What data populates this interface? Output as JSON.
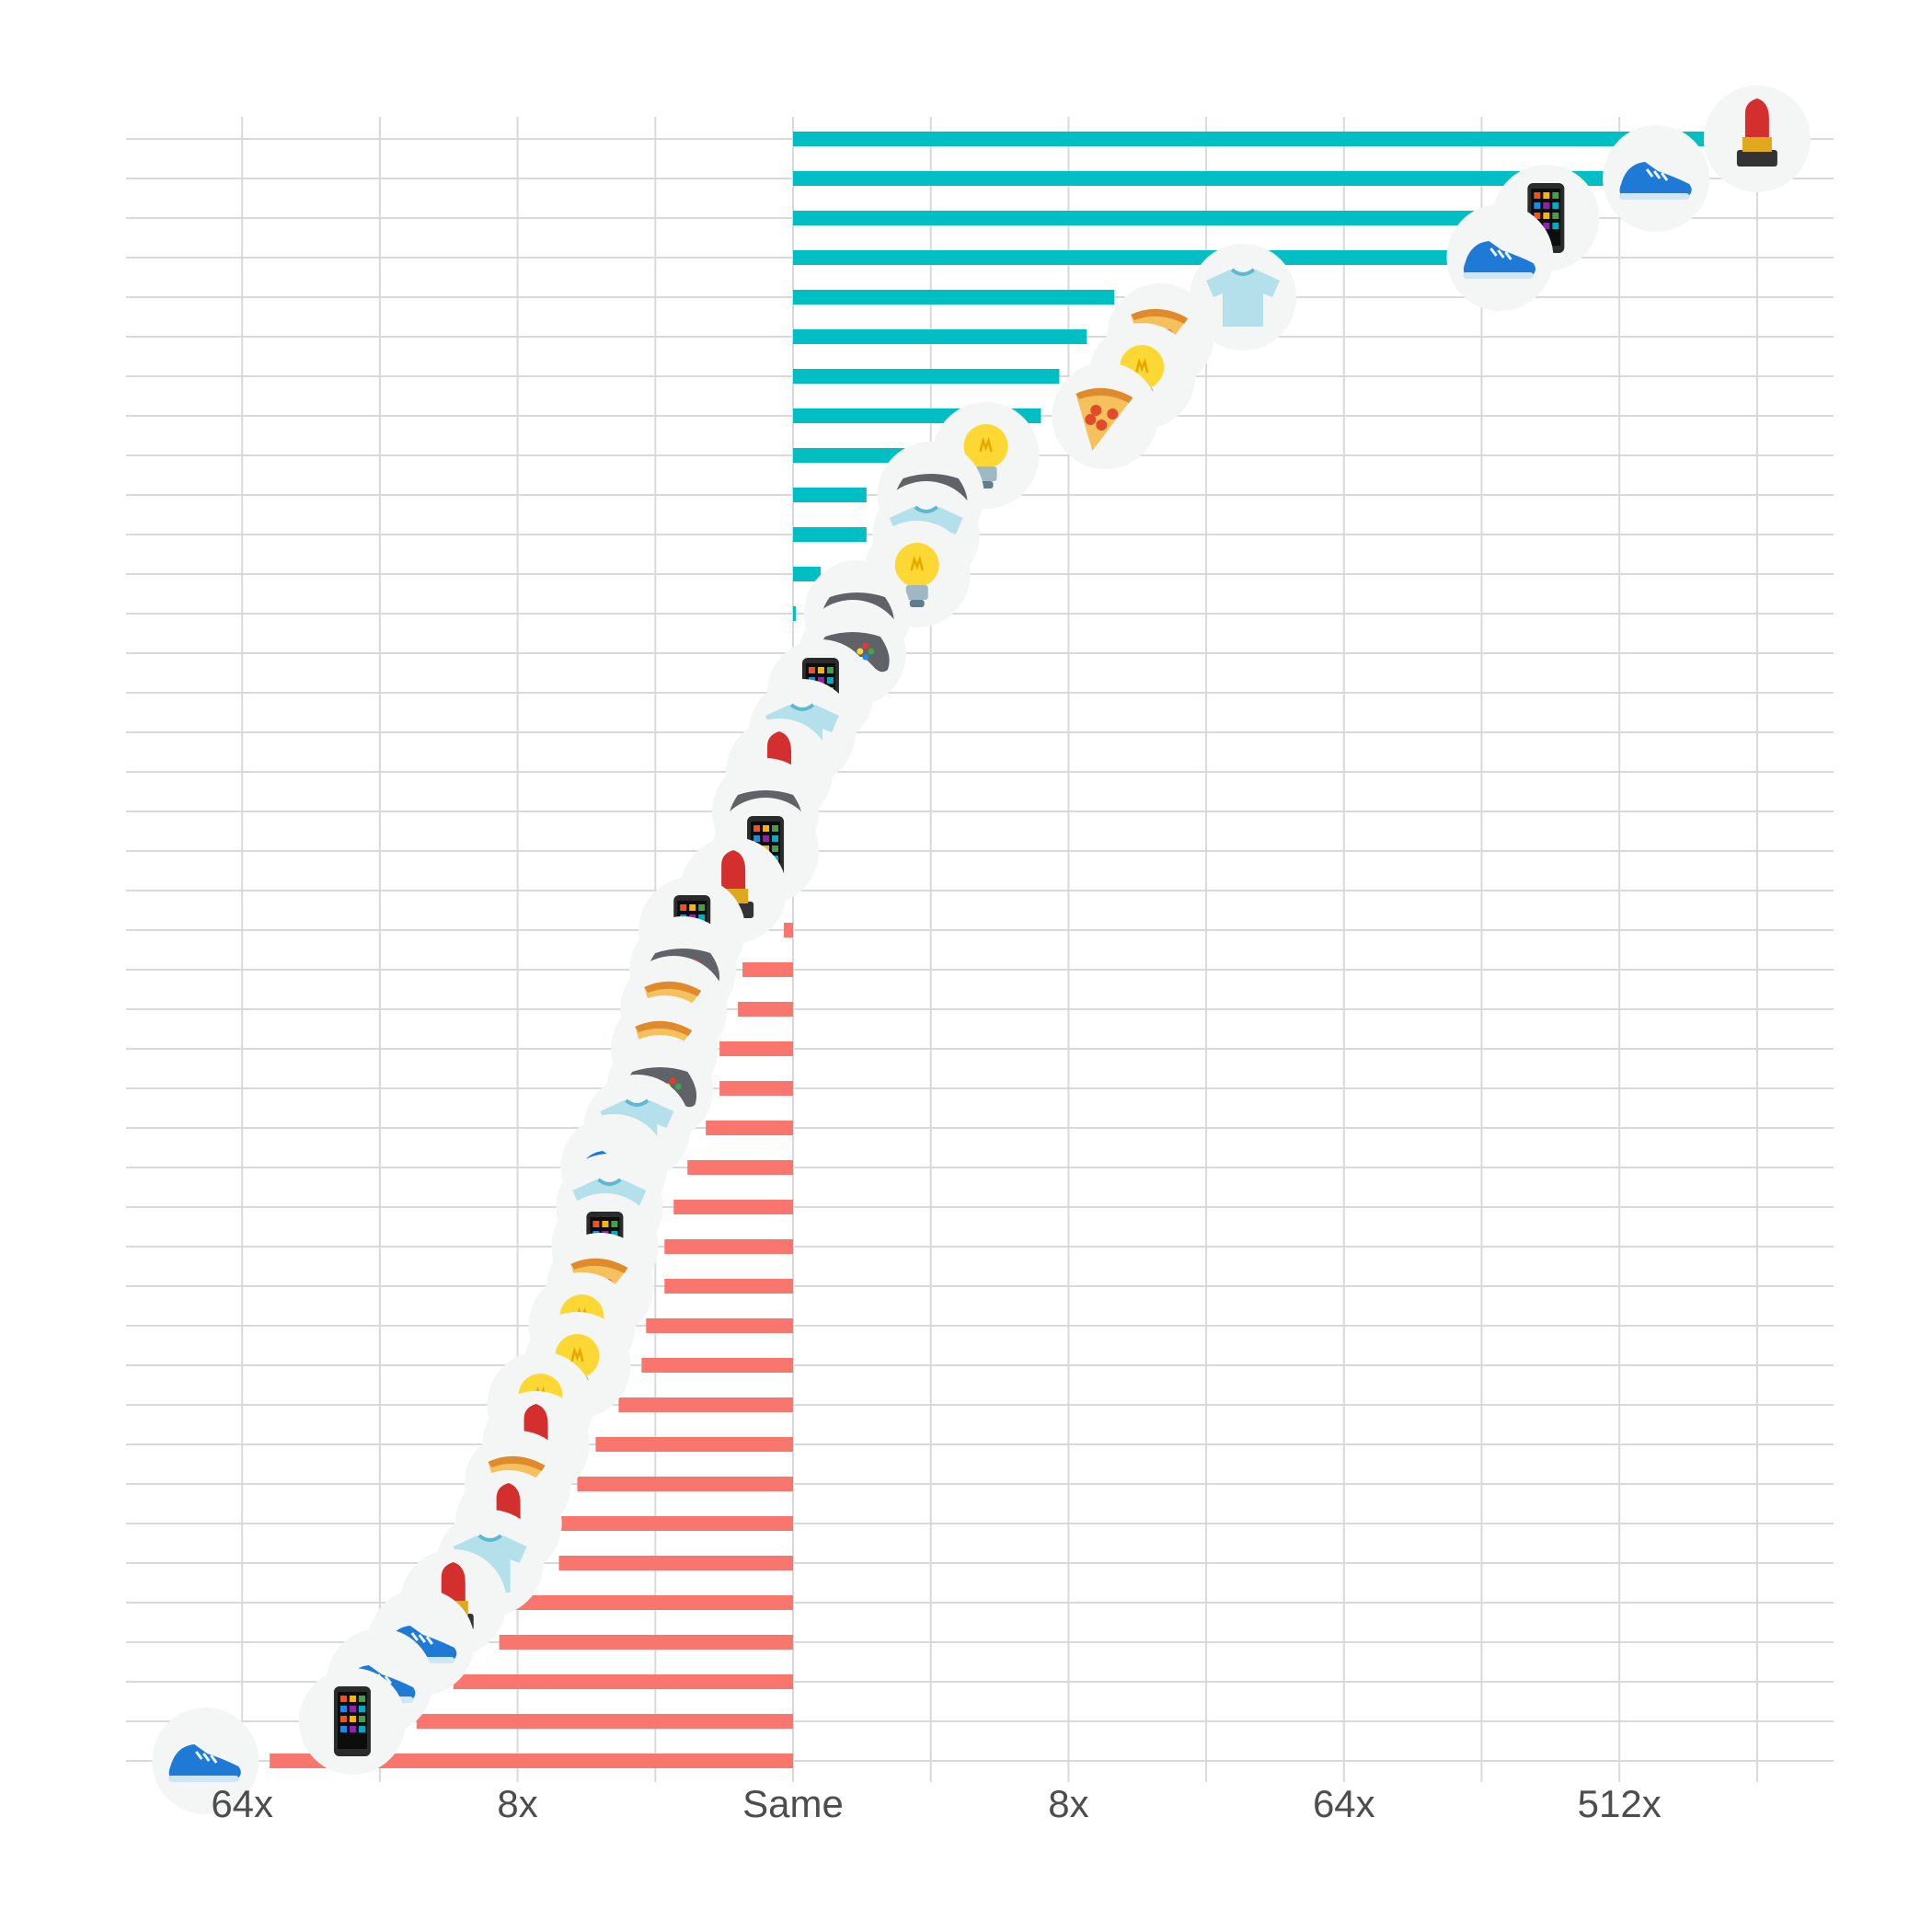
{
  "chart_data": {
    "type": "bar",
    "orientation": "horizontal",
    "x_scale": "log2",
    "xlim_log2": [
      -8,
      9.5
    ],
    "xticks": [
      {
        "log2": -6,
        "label": "64x"
      },
      {
        "log2": -3,
        "label": "8x"
      },
      {
        "log2": 0,
        "label": "Same"
      },
      {
        "log2": 3,
        "label": "8x"
      },
      {
        "log2": 6,
        "label": "64x"
      },
      {
        "log2": 9,
        "label": "512x"
      }
    ],
    "grid": true,
    "colors": {
      "positive": "#00BFC4",
      "negative": "#F8766D",
      "grid": "#d9d9d9",
      "badge": "#f4f6f5"
    },
    "icon_types": {
      "shoe": "running-shoe-icon",
      "phone": "mobile-phone-icon",
      "lipstick": "lipstick-icon",
      "shirt": "t-shirt-icon",
      "pizza": "pizza-icon",
      "bulb": "light-bulb-icon",
      "gamepad": "game-controller-icon"
    },
    "rows": [
      {
        "value": 10.5,
        "icons": [
          {
            "type": "lipstick",
            "at": 10.5
          }
        ]
      },
      {
        "value": 8.9,
        "icons": [
          {
            "type": "shoe",
            "at": 9.4
          }
        ]
      },
      {
        "value": 8.6,
        "icons": [
          {
            "type": "phone",
            "at": 8.2
          }
        ]
      },
      {
        "value": 7.4,
        "icons": [
          {
            "type": "shoe",
            "at": 7.7
          }
        ]
      },
      {
        "value": 3.5,
        "icons": [
          {
            "type": "shirt",
            "at": 4.9
          }
        ]
      },
      {
        "value": 3.2,
        "icons": [
          {
            "type": "pizza",
            "at": 4.0
          }
        ]
      },
      {
        "value": 2.9,
        "icons": [
          {
            "type": "bulb",
            "at": 3.8
          }
        ]
      },
      {
        "value": 2.7,
        "icons": [
          {
            "type": "pizza",
            "at": 3.4
          }
        ]
      },
      {
        "value": 1.3,
        "icons": [
          {
            "type": "bulb",
            "at": 2.1
          }
        ]
      },
      {
        "value": 0.8,
        "icons": [
          {
            "type": "gamepad",
            "at": 1.5
          }
        ]
      },
      {
        "value": 0.8,
        "icons": [
          {
            "type": "shirt",
            "at": 1.45
          }
        ]
      },
      {
        "value": 0.3,
        "icons": [
          {
            "type": "bulb",
            "at": 1.35
          }
        ]
      },
      {
        "value": 0.03,
        "icons": [
          {
            "type": "gamepad",
            "at": 0.7
          }
        ]
      },
      {
        "value": 0.0,
        "icons": [
          {
            "type": "gamepad",
            "at": 0.65
          }
        ]
      },
      {
        "value": 0.0,
        "icons": [
          {
            "type": "phone",
            "at": 0.3
          }
        ]
      },
      {
        "value": 0.0,
        "icons": [
          {
            "type": "shirt",
            "at": 0.1
          }
        ]
      },
      {
        "value": 0.0,
        "icons": [
          {
            "type": "lipstick",
            "at": -0.15
          }
        ]
      },
      {
        "value": 0.0,
        "icons": [
          {
            "type": "gamepad",
            "at": -0.3
          }
        ]
      },
      {
        "value": 0.0,
        "icons": [
          {
            "type": "phone",
            "at": -0.3
          }
        ]
      },
      {
        "value": 0.0,
        "icons": [
          {
            "type": "lipstick",
            "at": -0.65
          }
        ]
      },
      {
        "value": -0.1,
        "icons": [
          {
            "type": "phone",
            "at": -1.1
          }
        ]
      },
      {
        "value": -0.55,
        "icons": [
          {
            "type": "gamepad",
            "at": -1.2
          }
        ]
      },
      {
        "value": -0.6,
        "icons": [
          {
            "type": "pizza",
            "at": -1.3
          }
        ]
      },
      {
        "value": -0.8,
        "icons": [
          {
            "type": "pizza",
            "at": -1.4
          }
        ]
      },
      {
        "value": -0.8,
        "icons": [
          {
            "type": "gamepad",
            "at": -1.45
          }
        ]
      },
      {
        "value": -0.95,
        "icons": [
          {
            "type": "shirt",
            "at": -1.7
          }
        ]
      },
      {
        "value": -1.15,
        "icons": [
          {
            "type": "shoe",
            "at": -1.95
          }
        ]
      },
      {
        "value": -1.3,
        "icons": [
          {
            "type": "shirt",
            "at": -2.0
          }
        ]
      },
      {
        "value": -1.4,
        "icons": [
          {
            "type": "phone",
            "at": -2.05
          }
        ]
      },
      {
        "value": -1.4,
        "icons": [
          {
            "type": "pizza",
            "at": -2.1
          }
        ]
      },
      {
        "value": -1.6,
        "icons": [
          {
            "type": "bulb",
            "at": -2.3
          }
        ]
      },
      {
        "value": -1.65,
        "icons": [
          {
            "type": "bulb",
            "at": -2.35
          }
        ]
      },
      {
        "value": -1.9,
        "icons": [
          {
            "type": "bulb",
            "at": -2.75
          }
        ]
      },
      {
        "value": -2.15,
        "icons": [
          {
            "type": "lipstick",
            "at": -2.8
          }
        ]
      },
      {
        "value": -2.35,
        "icons": [
          {
            "type": "pizza",
            "at": -3.0
          }
        ]
      },
      {
        "value": -2.55,
        "icons": [
          {
            "type": "lipstick",
            "at": -3.1
          }
        ]
      },
      {
        "value": -2.55,
        "icons": [
          {
            "type": "shirt",
            "at": -3.3
          }
        ]
      },
      {
        "value": -3.2,
        "icons": [
          {
            "type": "lipstick",
            "at": -3.7
          }
        ]
      },
      {
        "value": -3.2,
        "icons": [
          {
            "type": "shoe",
            "at": -4.05
          }
        ]
      },
      {
        "value": -3.7,
        "icons": [
          {
            "type": "shoe",
            "at": -4.5
          }
        ]
      },
      {
        "value": -4.1,
        "icons": [
          {
            "type": "phone",
            "at": -4.8
          }
        ]
      },
      {
        "value": -5.7,
        "icons": [
          {
            "type": "shoe",
            "at": -6.4
          }
        ]
      }
    ]
  }
}
